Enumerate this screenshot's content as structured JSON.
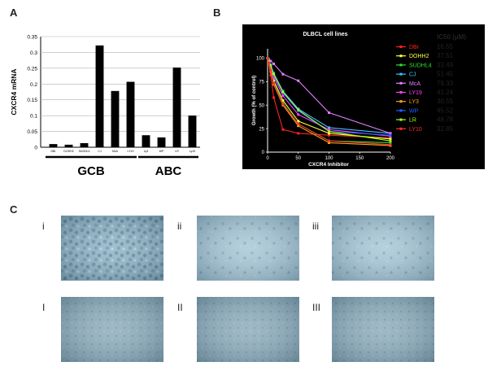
{
  "panels": {
    "a": "A",
    "b": "B",
    "c": "C"
  },
  "chart_data": [
    {
      "type": "bar",
      "panel": "A",
      "ylabel": "CXCR4 mRNA",
      "xlabel": "",
      "ylim": [
        0,
        0.35
      ],
      "yticks": [
        "0",
        "0.05",
        "0.1",
        "0.15",
        "0.2",
        "0.25",
        "0.3",
        "0.35"
      ],
      "grid": true,
      "categories": [
        "DBr",
        "DOHH2",
        "SUDHL4",
        "CJ",
        "McA",
        "LY19",
        "Ly3",
        "WP",
        "LR",
        "Ly10"
      ],
      "values": [
        0.01,
        0.008,
        0.013,
        0.322,
        0.178,
        0.207,
        0.038,
        0.031,
        0.252,
        0.1
      ],
      "groups": [
        {
          "label": "GCB",
          "from": 0,
          "to": 5
        },
        {
          "label": "ABC",
          "from": 6,
          "to": 9
        }
      ]
    },
    {
      "type": "line",
      "panel": "B",
      "title": "DLBCL cell lines",
      "xlabel": "CXCR4 Inhibitor",
      "ylabel": "Growth (% of control)",
      "xlim": [
        0,
        200
      ],
      "ylim": [
        0,
        110
      ],
      "xticks": [
        "0",
        "50",
        "100",
        "150",
        "200"
      ],
      "yticks": [
        "0",
        "25",
        "50",
        "75",
        "100"
      ],
      "x": [
        0,
        2,
        5,
        10,
        25,
        50,
        100,
        200
      ],
      "ic50_header": "IC50 (μM)",
      "series": [
        {
          "name": "DBr",
          "color": "#ff2020",
          "ic50": "16.55",
          "values": [
            100,
            94,
            82,
            58,
            24,
            20,
            18,
            15
          ]
        },
        {
          "name": "DOHH2",
          "color": "#ffff40",
          "ic50": "37.51",
          "values": [
            100,
            96,
            90,
            76,
            55,
            33,
            20,
            14
          ]
        },
        {
          "name": "SUDHL4",
          "color": "#30e030",
          "ic50": "33.49",
          "values": [
            100,
            95,
            88,
            74,
            52,
            30,
            12,
            10
          ]
        },
        {
          "name": "CJ",
          "color": "#40c0ff",
          "ic50": "51.45",
          "values": [
            100,
            98,
            93,
            84,
            65,
            46,
            26,
            20
          ]
        },
        {
          "name": "McA",
          "color": "#e080ff",
          "ic50": "79.33",
          "values": [
            100,
            99,
            97,
            94,
            83,
            76,
            42,
            20
          ]
        },
        {
          "name": "LY19",
          "color": "#ff40ff",
          "ic50": "41.24",
          "values": [
            100,
            97,
            91,
            80,
            60,
            40,
            24,
            17
          ]
        },
        {
          "name": "LY3",
          "color": "#ffa020",
          "ic50": "30.55",
          "values": [
            100,
            95,
            86,
            72,
            50,
            28,
            10,
            7
          ]
        },
        {
          "name": "WP",
          "color": "#2060ff",
          "ic50": "45.52",
          "values": [
            100,
            98,
            92,
            82,
            63,
            44,
            22,
            18
          ]
        },
        {
          "name": "LR",
          "color": "#a0ff20",
          "ic50": "48.78",
          "values": [
            100,
            97,
            92,
            83,
            64,
            45,
            22,
            12
          ]
        },
        {
          "name": "LY10",
          "color": "#ff3030",
          "ic50": "32.85",
          "values": [
            100,
            95,
            87,
            73,
            51,
            30,
            12,
            8
          ]
        }
      ]
    }
  ],
  "micrographs": {
    "top": [
      {
        "label": "i"
      },
      {
        "label": "ii"
      },
      {
        "label": "iii"
      }
    ],
    "bottom": [
      {
        "label": "I"
      },
      {
        "label": "II"
      },
      {
        "label": "III"
      }
    ]
  }
}
